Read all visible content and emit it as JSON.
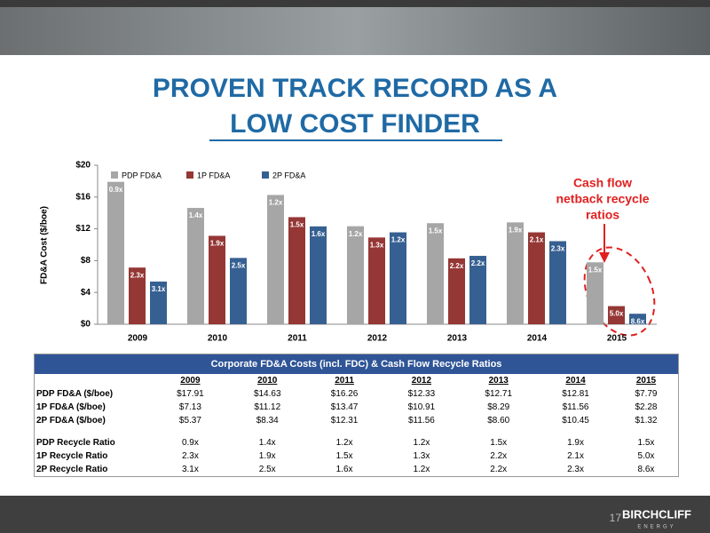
{
  "header": {
    "title_lines": [
      "PROVEN TRACK RECORD AS A",
      "LOW COST FINDER"
    ]
  },
  "chart_data": {
    "type": "bar",
    "y_label": "FD&A Cost ($/boe)",
    "categories": [
      "2009",
      "2010",
      "2011",
      "2012",
      "2013",
      "2014",
      "2015"
    ],
    "series": [
      {
        "name": "PDP FD&A",
        "color": "#a6a6a6",
        "values": [
          17.91,
          14.63,
          16.26,
          12.33,
          12.71,
          12.81,
          7.79
        ],
        "labels": [
          "0.9x",
          "1.4x",
          "1.2x",
          "1.2x",
          "1.5x",
          "1.9x",
          "1.5x"
        ]
      },
      {
        "name": "1P FD&A",
        "color": "#953735",
        "values": [
          7.13,
          11.12,
          13.47,
          10.91,
          8.29,
          11.56,
          2.28
        ],
        "labels": [
          "2.3x",
          "1.9x",
          "1.5x",
          "1.3x",
          "2.2x",
          "2.1x",
          "5.0x"
        ]
      },
      {
        "name": "2P FD&A",
        "color": "#376092",
        "values": [
          5.37,
          8.34,
          12.31,
          11.56,
          8.6,
          10.45,
          1.32
        ],
        "labels": [
          "3.1x",
          "2.5x",
          "1.6x",
          "1.2x",
          "2.2x",
          "2.3x",
          "8.6x"
        ]
      }
    ],
    "ylim": [
      0,
      20
    ],
    "yticks": [
      {
        "value": 0,
        "label": "$0"
      },
      {
        "value": 4,
        "label": "$4"
      },
      {
        "value": 8,
        "label": "$8"
      },
      {
        "value": 12,
        "label": "$12"
      },
      {
        "value": 16,
        "label": "$16"
      },
      {
        "value": 20,
        "label": "$20"
      }
    ],
    "legend": "top-left",
    "annotation_lines": [
      "Cash flow",
      "netback recycle",
      "ratios"
    ]
  },
  "table": {
    "title": "Corporate FD&A Costs (incl. FDC) & Cash Flow Recycle Ratios",
    "header": [
      "2009",
      "2010",
      "2011",
      "2012",
      "2013",
      "2014",
      "2015"
    ],
    "cost_rows": [
      [
        "PDP FD&A ($/boe)",
        "$17.91",
        "$14.63",
        "$16.26",
        "$12.33",
        "$12.71",
        "$12.81",
        "$7.79"
      ],
      [
        "1P FD&A ($/boe)",
        "$7.13",
        "$11.12",
        "$13.47",
        "$10.91",
        "$8.29",
        "$11.56",
        "$2.28"
      ],
      [
        "2P FD&A ($/boe)",
        "$5.37",
        "$8.34",
        "$12.31",
        "$11.56",
        "$8.60",
        "$10.45",
        "$1.32"
      ]
    ],
    "ratio_rows": [
      [
        "PDP Recycle Ratio",
        "0.9x",
        "1.4x",
        "1.2x",
        "1.2x",
        "1.5x",
        "1.9x",
        "1.5x"
      ],
      [
        "1P Recycle Ratio",
        "2.3x",
        "1.9x",
        "1.5x",
        "1.3x",
        "2.2x",
        "2.1x",
        "5.0x"
      ],
      [
        "2P Recycle Ratio",
        "3.1x",
        "2.5x",
        "1.6x",
        "1.2x",
        "2.2x",
        "2.3x",
        "8.6x"
      ]
    ]
  },
  "footer": {
    "page": "17",
    "logo": "BIRCHCLIFF",
    "logo_sub": "ENERGY"
  }
}
